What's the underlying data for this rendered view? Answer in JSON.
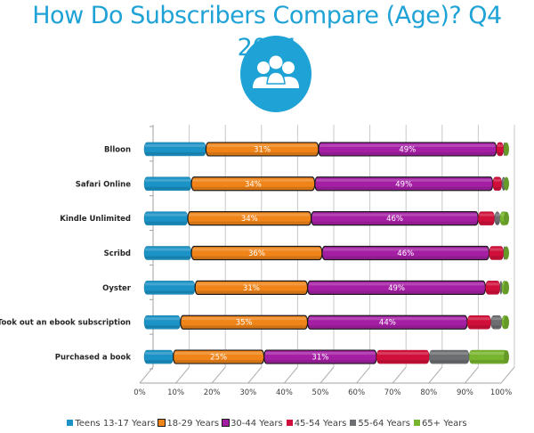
{
  "chart_data": {
    "type": "bar",
    "orientation": "horizontal",
    "stacked": "percent",
    "title": "How Do Subscribers Compare (Age)? Q4 2014",
    "xlabel": "",
    "ylabel": "",
    "xlim": [
      0,
      100
    ],
    "x_ticks": [
      "0%",
      "10%",
      "20%",
      "30%",
      "40%",
      "50%",
      "60%",
      "70%",
      "80%",
      "90%",
      "100%"
    ],
    "grid": true,
    "legend_position": "bottom",
    "categories": [
      "Blloon",
      "Safari Online",
      "Kindle Unlimited",
      "Scribd",
      "Oyster",
      "Took out an ebook subscription",
      "Purchased a book"
    ],
    "series": [
      {
        "name": "Teens 13-17 Years",
        "color": "#1b93c6",
        "values": [
          17,
          13,
          12,
          13,
          14,
          10,
          8
        ]
      },
      {
        "name": "18-29 Years",
        "color": "#f08418",
        "values": [
          31,
          34,
          34,
          36,
          31,
          35,
          25
        ],
        "labeled": true
      },
      {
        "name": "30-44 Years",
        "color": "#a51fa5",
        "values": [
          49,
          49,
          46,
          46,
          49,
          44,
          31
        ],
        "labeled": true
      },
      {
        "name": "45-54 Years",
        "color": "#d0103a",
        "values": [
          2,
          2.5,
          4.5,
          4,
          4,
          6.5,
          14.5
        ]
      },
      {
        "name": "55-64 Years",
        "color": "#6d6e71",
        "values": [
          0.5,
          1,
          1.5,
          0.5,
          0.5,
          3,
          11
        ]
      },
      {
        "name": "65+ Years",
        "color": "#78b52e",
        "values": [
          0.5,
          0.5,
          2,
          0.5,
          1.5,
          1.5,
          10.5
        ]
      }
    ],
    "data_labels": {
      "18-29 Years": [
        "31%",
        "34%",
        "34%",
        "36%",
        "31%",
        "35%",
        "25%"
      ],
      "30-44 Years": [
        "49%",
        "49%",
        "46%",
        "46%",
        "49%",
        "44%",
        "31%"
      ]
    }
  },
  "header": {
    "title": "How Do Subscribers Compare (Age)? Q4 2014",
    "icon": "people-group-icon",
    "icon_color": "#1fa2d6"
  }
}
